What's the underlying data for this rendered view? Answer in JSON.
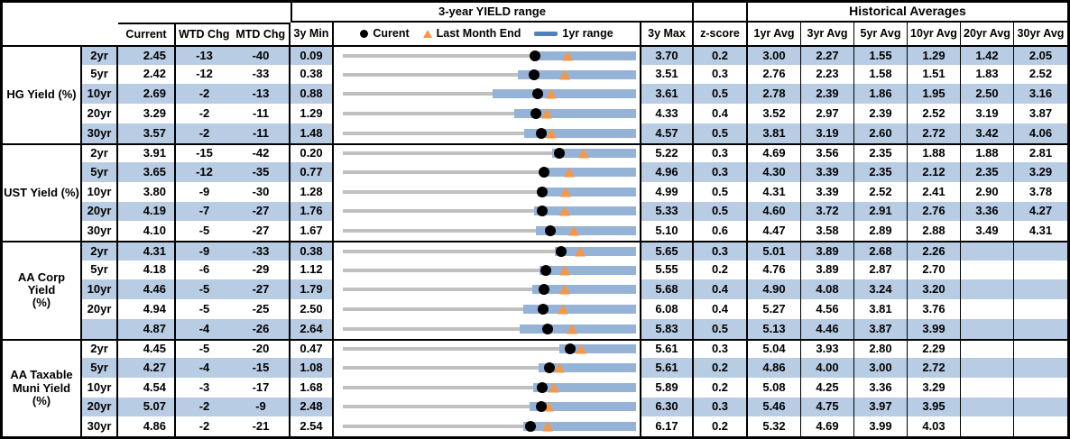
{
  "titles": {
    "range_chart": "3-year YIELD range",
    "historical": "Historical Averages"
  },
  "columns": {
    "current": "Current",
    "wtd": "WTD Chg",
    "mtd": "MTD Chg",
    "min": "3y Min",
    "max": "3y Max",
    "z": "z-score",
    "avgs": [
      "1yr Avg",
      "3yr Avg",
      "5yr Avg",
      "10yr Avg",
      "20yr Avg",
      "30yr Avg"
    ]
  },
  "legend": {
    "current": "Curent",
    "last_month_end": "Last Month End",
    "range": "1yr range"
  },
  "colors": {
    "stripe": "#B8CCE4",
    "bar": "#95B3D7",
    "legend_bar": "#4F81BD",
    "triangle": "#F79646",
    "range_line": "#C0C0C0",
    "dot": "#000000"
  },
  "chart_data": {
    "type": "table",
    "embedded_chart": "Each row has a bullet chart spanning 3y Min to 3y Max: gray line = 3-year range, blue bar = 1yr range (bar_lo to bar_hi), black dot = Current, orange triangle = Last Month End (current minus MTD change)",
    "groups": [
      {
        "label": "HG Yield (%)",
        "rows": [
          {
            "tenor": "2yr",
            "current": "2.45",
            "wtd": "-13",
            "mtd": "-40",
            "min": "0.09",
            "max": "3.70",
            "z": "0.2",
            "avgs": [
              "3.00",
              "2.27",
              "1.55",
              "1.29",
              "1.42",
              "2.05"
            ],
            "last_month_end": 2.85,
            "bar_lo": 2.5,
            "bar_hi": 3.7
          },
          {
            "tenor": "5yr",
            "current": "2.42",
            "wtd": "-12",
            "mtd": "-33",
            "min": "0.38",
            "max": "3.51",
            "z": "0.3",
            "avgs": [
              "2.76",
              "2.23",
              "1.58",
              "1.51",
              "1.83",
              "2.52"
            ],
            "last_month_end": 2.75,
            "bar_lo": 2.25,
            "bar_hi": 3.51
          },
          {
            "tenor": "10yr",
            "current": "2.69",
            "wtd": "-2",
            "mtd": "-13",
            "min": "0.88",
            "max": "3.61",
            "z": "0.5",
            "avgs": [
              "2.78",
              "2.39",
              "1.86",
              "1.95",
              "2.50",
              "3.16"
            ],
            "last_month_end": 2.82,
            "bar_lo": 2.27,
            "bar_hi": 3.61
          },
          {
            "tenor": "20yr",
            "current": "3.29",
            "wtd": "-2",
            "mtd": "-11",
            "min": "1.29",
            "max": "4.33",
            "z": "0.4",
            "avgs": [
              "3.52",
              "2.97",
              "2.39",
              "2.52",
              "3.19",
              "3.87"
            ],
            "last_month_end": 3.4,
            "bar_lo": 3.07,
            "bar_hi": 4.33
          },
          {
            "tenor": "30yr",
            "current": "3.57",
            "wtd": "-2",
            "mtd": "-11",
            "min": "1.48",
            "max": "4.57",
            "z": "0.5",
            "avgs": [
              "3.81",
              "3.19",
              "2.60",
              "2.72",
              "3.42",
              "4.06"
            ],
            "last_month_end": 3.68,
            "bar_lo": 3.39,
            "bar_hi": 4.57
          }
        ]
      },
      {
        "label": "UST Yield (%)",
        "rows": [
          {
            "tenor": "2yr",
            "current": "3.91",
            "wtd": "-15",
            "mtd": "-42",
            "min": "0.20",
            "max": "5.22",
            "z": "0.3",
            "avgs": [
              "4.69",
              "3.56",
              "2.35",
              "1.88",
              "1.88",
              "2.81"
            ],
            "last_month_end": 4.33,
            "bar_lo": 3.78,
            "bar_hi": 5.22
          },
          {
            "tenor": "5yr",
            "current": "3.65",
            "wtd": "-12",
            "mtd": "-35",
            "min": "0.77",
            "max": "4.96",
            "z": "0.3",
            "avgs": [
              "4.30",
              "3.39",
              "2.35",
              "2.12",
              "2.35",
              "3.29"
            ],
            "last_month_end": 4.0,
            "bar_lo": 3.61,
            "bar_hi": 4.96
          },
          {
            "tenor": "10yr",
            "current": "3.80",
            "wtd": "-9",
            "mtd": "-30",
            "min": "1.28",
            "max": "4.99",
            "z": "0.5",
            "avgs": [
              "4.31",
              "3.39",
              "2.52",
              "2.41",
              "2.90",
              "3.78"
            ],
            "last_month_end": 4.1,
            "bar_lo": 3.75,
            "bar_hi": 4.99
          },
          {
            "tenor": "20yr",
            "current": "4.19",
            "wtd": "-7",
            "mtd": "-27",
            "min": "1.76",
            "max": "5.33",
            "z": "0.5",
            "avgs": [
              "4.60",
              "3.72",
              "2.91",
              "2.76",
              "3.36",
              "4.27"
            ],
            "last_month_end": 4.46,
            "bar_lo": 4.09,
            "bar_hi": 5.33
          },
          {
            "tenor": "30yr",
            "current": "4.10",
            "wtd": "-5",
            "mtd": "-27",
            "min": "1.67",
            "max": "5.10",
            "z": "0.6",
            "avgs": [
              "4.47",
              "3.58",
              "2.89",
              "2.88",
              "3.49",
              "4.31"
            ],
            "last_month_end": 4.37,
            "bar_lo": 3.93,
            "bar_hi": 5.1
          }
        ]
      },
      {
        "label": "AA Corp Yield\n(%)",
        "rows": [
          {
            "tenor": "2yr",
            "current": "4.31",
            "wtd": "-9",
            "mtd": "-33",
            "min": "0.38",
            "max": "5.65",
            "z": "0.3",
            "avgs": [
              "5.01",
              "3.89",
              "2.68",
              "2.26",
              "",
              ""
            ],
            "last_month_end": 4.64,
            "bar_lo": 4.19,
            "bar_hi": 5.65
          },
          {
            "tenor": "5yr",
            "current": "4.18",
            "wtd": "-6",
            "mtd": "-29",
            "min": "1.12",
            "max": "5.55",
            "z": "0.2",
            "avgs": [
              "4.76",
              "3.89",
              "2.87",
              "2.70",
              "",
              ""
            ],
            "last_month_end": 4.47,
            "bar_lo": 4.09,
            "bar_hi": 5.55
          },
          {
            "tenor": "10yr",
            "current": "4.46",
            "wtd": "-5",
            "mtd": "-27",
            "min": "1.79",
            "max": "5.68",
            "z": "0.4",
            "avgs": [
              "4.90",
              "4.08",
              "3.24",
              "3.20",
              "",
              ""
            ],
            "last_month_end": 4.73,
            "bar_lo": 4.3,
            "bar_hi": 5.68
          },
          {
            "tenor": "20yr",
            "current": "4.94",
            "wtd": "-5",
            "mtd": "-25",
            "min": "2.50",
            "max": "6.08",
            "z": "0.4",
            "avgs": [
              "5.27",
              "4.56",
              "3.81",
              "3.76",
              "",
              ""
            ],
            "last_month_end": 5.19,
            "bar_lo": 4.7,
            "bar_hi": 6.08
          },
          {
            "tenor": "",
            "current": "4.87",
            "wtd": "-4",
            "mtd": "-26",
            "min": "2.64",
            "max": "5.83",
            "z": "0.5",
            "avgs": [
              "5.13",
              "4.46",
              "3.87",
              "3.99",
              "",
              ""
            ],
            "last_month_end": 5.13,
            "bar_lo": 4.56,
            "bar_hi": 5.83
          }
        ]
      },
      {
        "label": "AA Taxable\nMuni Yield\n(%)",
        "rows": [
          {
            "tenor": "2yr",
            "current": "4.45",
            "wtd": "-5",
            "mtd": "-20",
            "min": "0.47",
            "max": "5.61",
            "z": "0.3",
            "avgs": [
              "5.04",
              "3.93",
              "2.80",
              "2.29",
              "",
              ""
            ],
            "last_month_end": 4.65,
            "bar_lo": 4.26,
            "bar_hi": 5.61
          },
          {
            "tenor": "5yr",
            "current": "4.27",
            "wtd": "-4",
            "mtd": "-15",
            "min": "1.08",
            "max": "5.61",
            "z": "0.2",
            "avgs": [
              "4.86",
              "4.00",
              "3.00",
              "2.72",
              "",
              ""
            ],
            "last_month_end": 4.42,
            "bar_lo": 4.11,
            "bar_hi": 5.61
          },
          {
            "tenor": "10yr",
            "current": "4.54",
            "wtd": "-3",
            "mtd": "-17",
            "min": "1.68",
            "max": "5.89",
            "z": "0.2",
            "avgs": [
              "5.08",
              "4.25",
              "3.36",
              "3.29",
              "",
              ""
            ],
            "last_month_end": 4.71,
            "bar_lo": 4.41,
            "bar_hi": 5.89
          },
          {
            "tenor": "20yr",
            "current": "5.07",
            "wtd": "-2",
            "mtd": "-9",
            "min": "2.48",
            "max": "6.30",
            "z": "0.3",
            "avgs": [
              "5.46",
              "4.75",
              "3.97",
              "3.95",
              "",
              ""
            ],
            "last_month_end": 5.16,
            "bar_lo": 4.91,
            "bar_hi": 6.3
          },
          {
            "tenor": "30yr",
            "current": "4.86",
            "wtd": "-2",
            "mtd": "-21",
            "min": "2.54",
            "max": "6.17",
            "z": "0.2",
            "avgs": [
              "5.32",
              "4.69",
              "3.99",
              "4.03",
              "",
              ""
            ],
            "last_month_end": 5.07,
            "bar_lo": 4.77,
            "bar_hi": 6.17
          }
        ]
      }
    ]
  }
}
